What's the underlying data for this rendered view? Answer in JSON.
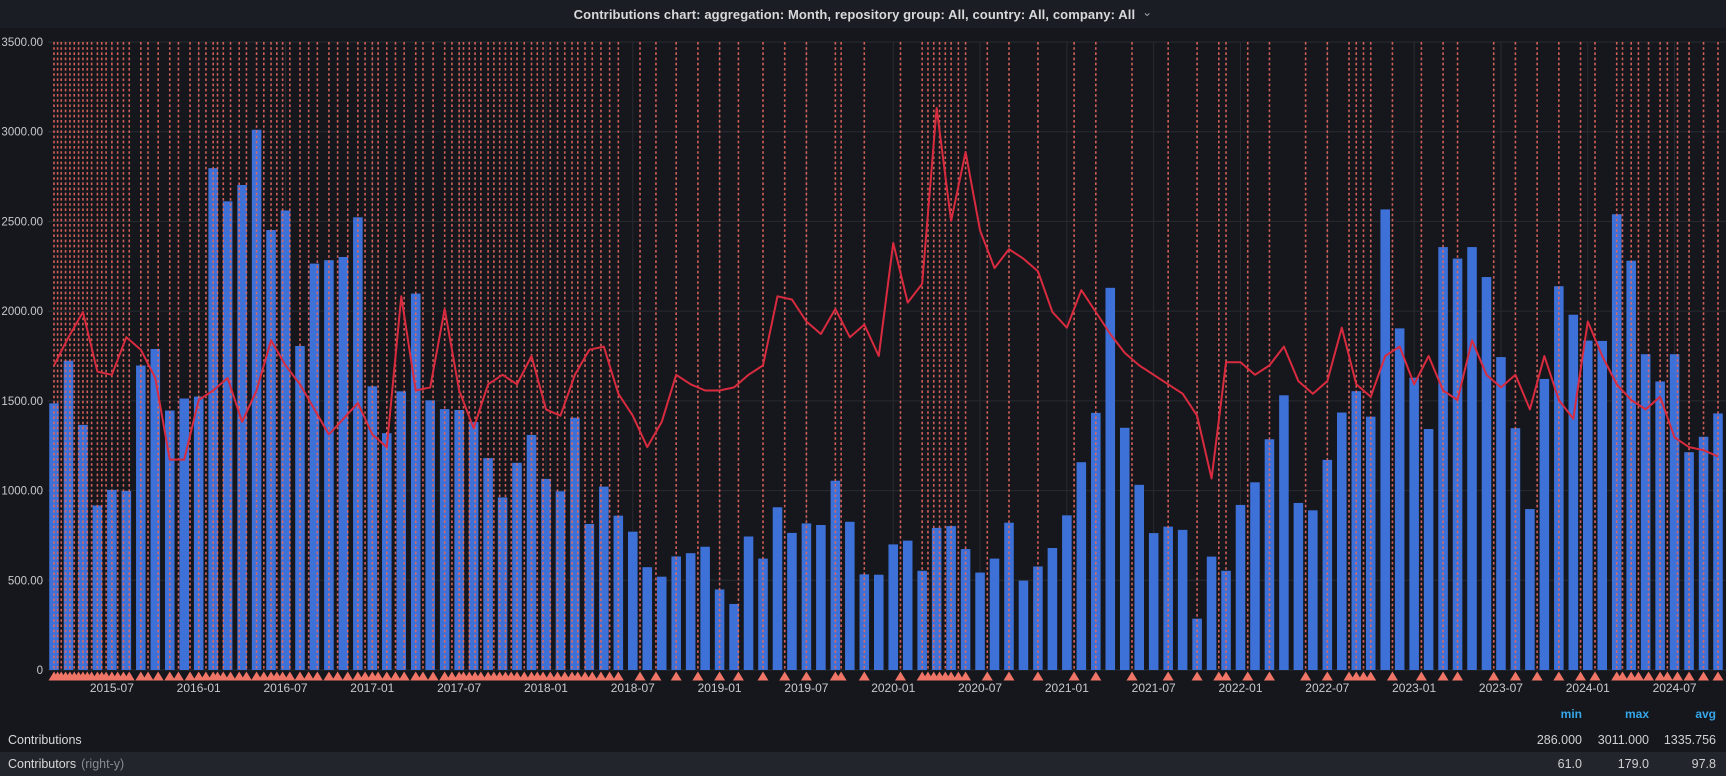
{
  "header": {
    "title": "Contributions chart: aggregation: Month, repository group: All, country: All, company: All",
    "chevron": "⌄"
  },
  "legend": {
    "columns": [
      "min",
      "max",
      "avg"
    ],
    "rows": [
      {
        "label": "Contributions",
        "suffix": "",
        "min": "286.000",
        "max": "3011.000",
        "avg": "1335.756"
      },
      {
        "label": "Contributors",
        "suffix": "(right-y)",
        "min": "61.0",
        "max": "179.0",
        "avg": "97.8"
      }
    ]
  },
  "chart_data": {
    "type": "bar",
    "title": "Contributions chart",
    "xlabel": "",
    "ylabel": "",
    "months": [
      "2015-03",
      "2015-04",
      "2015-05",
      "2015-06",
      "2015-07",
      "2015-08",
      "2015-09",
      "2015-10",
      "2015-11",
      "2015-12",
      "2016-01",
      "2016-02",
      "2016-03",
      "2016-04",
      "2016-05",
      "2016-06",
      "2016-07",
      "2016-08",
      "2016-09",
      "2016-10",
      "2016-11",
      "2016-12",
      "2017-01",
      "2017-02",
      "2017-03",
      "2017-04",
      "2017-05",
      "2017-06",
      "2017-07",
      "2017-08",
      "2017-09",
      "2017-10",
      "2017-11",
      "2017-12",
      "2018-01",
      "2018-02",
      "2018-03",
      "2018-04",
      "2018-05",
      "2018-06",
      "2018-07",
      "2018-08",
      "2018-09",
      "2018-10",
      "2018-11",
      "2018-12",
      "2019-01",
      "2019-02",
      "2019-03",
      "2019-04",
      "2019-05",
      "2019-06",
      "2019-07",
      "2019-08",
      "2019-09",
      "2019-10",
      "2019-11",
      "2019-12",
      "2020-01",
      "2020-02",
      "2020-03",
      "2020-04",
      "2020-05",
      "2020-06",
      "2020-07",
      "2020-08",
      "2020-09",
      "2020-10",
      "2020-11",
      "2020-12",
      "2021-01",
      "2021-02",
      "2021-03",
      "2021-04",
      "2021-05",
      "2021-06",
      "2021-07",
      "2021-08",
      "2021-09",
      "2021-10",
      "2021-11",
      "2021-12",
      "2022-01",
      "2022-02",
      "2022-03",
      "2022-04",
      "2022-05",
      "2022-06",
      "2022-07",
      "2022-08",
      "2022-09",
      "2022-10",
      "2022-11",
      "2022-12",
      "2023-01",
      "2023-02",
      "2023-03",
      "2023-04",
      "2023-05",
      "2023-06",
      "2023-07",
      "2023-08",
      "2023-09",
      "2023-10",
      "2023-11",
      "2023-12",
      "2024-01",
      "2024-02",
      "2024-03",
      "2024-04",
      "2024-05",
      "2024-06",
      "2024-07",
      "2024-08",
      "2024-09",
      "2024-10"
    ],
    "series": [
      {
        "name": "Contributions",
        "render": "bar",
        "axis": "left",
        "values": [
          1486,
          1724,
          1366,
          917,
          1004,
          998,
          1697,
          1789,
          1446,
          1513,
          1524,
          2797,
          2612,
          2703,
          3011,
          2452,
          2561,
          1806,
          2265,
          2284,
          2302,
          2523,
          1581,
          1320,
          1553,
          2098,
          1503,
          1454,
          1449,
          1382,
          1181,
          962,
          1155,
          1310,
          1065,
          996,
          1406,
          814,
          1022,
          860,
          771,
          573,
          520,
          633,
          651,
          687,
          449,
          368,
          744,
          621,
          907,
          764,
          817,
          808,
          1055,
          826,
          533,
          531,
          700,
          721,
          553,
          792,
          802,
          674,
          543,
          621,
          821,
          498,
          577,
          680,
          862,
          1158,
          1433,
          2130,
          1350,
          1032,
          763,
          799,
          781,
          286,
          632,
          553,
          920,
          1046,
          1286,
          1531,
          931,
          890,
          1171,
          1435,
          1554,
          1412,
          2567,
          1904,
          1629,
          1343,
          2357,
          2293,
          2357,
          2190,
          1744,
          1348,
          897,
          1622,
          2139,
          1980,
          1836,
          1834,
          2540,
          2281,
          1760,
          1608,
          1760,
          1214,
          1300,
          1430
        ]
      },
      {
        "name": "Contributors",
        "render": "line",
        "axis": "right",
        "values": [
          97,
          106,
          114,
          95,
          94,
          106,
          102,
          93,
          67,
          67,
          86,
          89,
          93,
          79,
          89,
          105,
          97,
          91,
          83,
          75,
          80,
          85,
          75,
          71,
          119,
          89,
          90,
          115,
          89,
          77,
          91,
          94,
          91,
          100,
          83,
          81,
          94,
          102,
          103,
          88,
          81,
          71,
          79,
          94,
          91,
          89,
          89,
          90,
          94,
          97,
          119,
          118,
          111,
          107,
          115,
          106,
          110,
          100,
          136,
          117,
          123,
          179,
          143,
          165,
          140,
          128,
          134,
          131,
          127,
          114,
          109,
          121,
          114,
          107,
          101,
          97,
          94,
          91,
          88,
          81,
          61,
          98,
          98,
          94,
          97,
          103,
          92,
          88,
          92,
          109,
          91,
          87,
          100,
          103,
          91,
          100,
          89,
          86,
          105,
          94,
          90,
          94,
          83,
          100,
          86,
          80,
          111,
          100,
          91,
          86,
          83,
          87,
          74,
          71,
          70,
          68
        ]
      }
    ],
    "left_axis": {
      "min": 0,
      "max": 3500,
      "tick_step": 500
    },
    "right_axis": {
      "min": 0,
      "max": 200
    },
    "y_ticks": [
      "3500.00",
      "3000.00",
      "2500.00",
      "2000.00",
      "1500.00",
      "1000.00",
      "500.00",
      "0"
    ],
    "x_ticks": [
      {
        "index": 4,
        "label": "2015-07"
      },
      {
        "index": 10,
        "label": "2016-01"
      },
      {
        "index": 16,
        "label": "2016-07"
      },
      {
        "index": 22,
        "label": "2017-01"
      },
      {
        "index": 28,
        "label": "2017-07"
      },
      {
        "index": 34,
        "label": "2018-01"
      },
      {
        "index": 40,
        "label": "2018-07"
      },
      {
        "index": 46,
        "label": "2019-01"
      },
      {
        "index": 52,
        "label": "2019-07"
      },
      {
        "index": 58,
        "label": "2020-01"
      },
      {
        "index": 64,
        "label": "2020-07"
      },
      {
        "index": 70,
        "label": "2021-01"
      },
      {
        "index": 76,
        "label": "2021-07"
      },
      {
        "index": 82,
        "label": "2022-01"
      },
      {
        "index": 88,
        "label": "2022-07"
      },
      {
        "index": 94,
        "label": "2023-01"
      },
      {
        "index": 100,
        "label": "2023-07"
      },
      {
        "index": 106,
        "label": "2024-01"
      },
      {
        "index": 112,
        "label": "2024-07"
      }
    ],
    "annotations": {
      "style": "red dashed vertical lines with triangle markers at baseline",
      "positions": [
        0,
        0.25,
        0.5,
        0.8,
        1.1,
        1.4,
        1.7,
        2,
        2.3,
        2.6,
        3,
        3.3,
        3.6,
        4,
        4.4,
        4.8,
        5.2,
        6,
        6.5,
        7.2,
        8,
        8.6,
        9.4,
        10,
        10.5,
        11,
        11.3,
        11.7,
        12.2,
        12.8,
        13.3,
        14,
        14.5,
        15,
        15.4,
        15.8,
        16.3,
        17,
        17.6,
        18.2,
        19,
        19.6,
        20.3,
        21,
        21.5,
        22,
        22.4,
        23,
        23.6,
        24.2,
        25,
        25.5,
        26.2,
        27,
        27.5,
        28,
        28.3,
        28.7,
        29.1,
        29.5,
        30,
        30.4,
        30.8,
        31.2,
        31.6,
        32,
        32.5,
        33,
        33.4,
        33.8,
        34.3,
        34.8,
        35.3,
        35.8,
        36.2,
        36.7,
        37.2,
        37.8,
        38.4,
        39,
        40.5,
        41.6,
        43,
        44.5,
        46,
        47.3,
        49,
        50.5,
        52,
        54,
        54.4,
        56,
        58.5,
        60,
        60.4,
        60.8,
        61.2,
        61.6,
        62,
        62.5,
        63,
        64.5,
        66,
        68,
        70.5,
        72,
        74.5,
        77,
        79,
        80.5,
        81,
        82.5,
        84,
        86.5,
        88,
        89.5,
        90,
        90.5,
        91,
        92.5,
        94.5,
        96,
        97,
        99.5,
        101,
        102.5,
        104,
        105.5,
        106.5,
        108,
        108.4,
        109,
        109.5,
        110.2,
        111,
        111.5,
        112.2,
        113,
        114,
        115
      ]
    },
    "grid": true,
    "legend_position": "bottom-table",
    "colors": {
      "bars": "#3e71d8",
      "line": "#d92b3f",
      "annotation": "#e8685f",
      "annotation_marker": "#ef7566",
      "grid": "#282b31",
      "axis_text": "#c8c9cd",
      "background": "#15171c",
      "legend_header": "#36a6e9"
    }
  }
}
